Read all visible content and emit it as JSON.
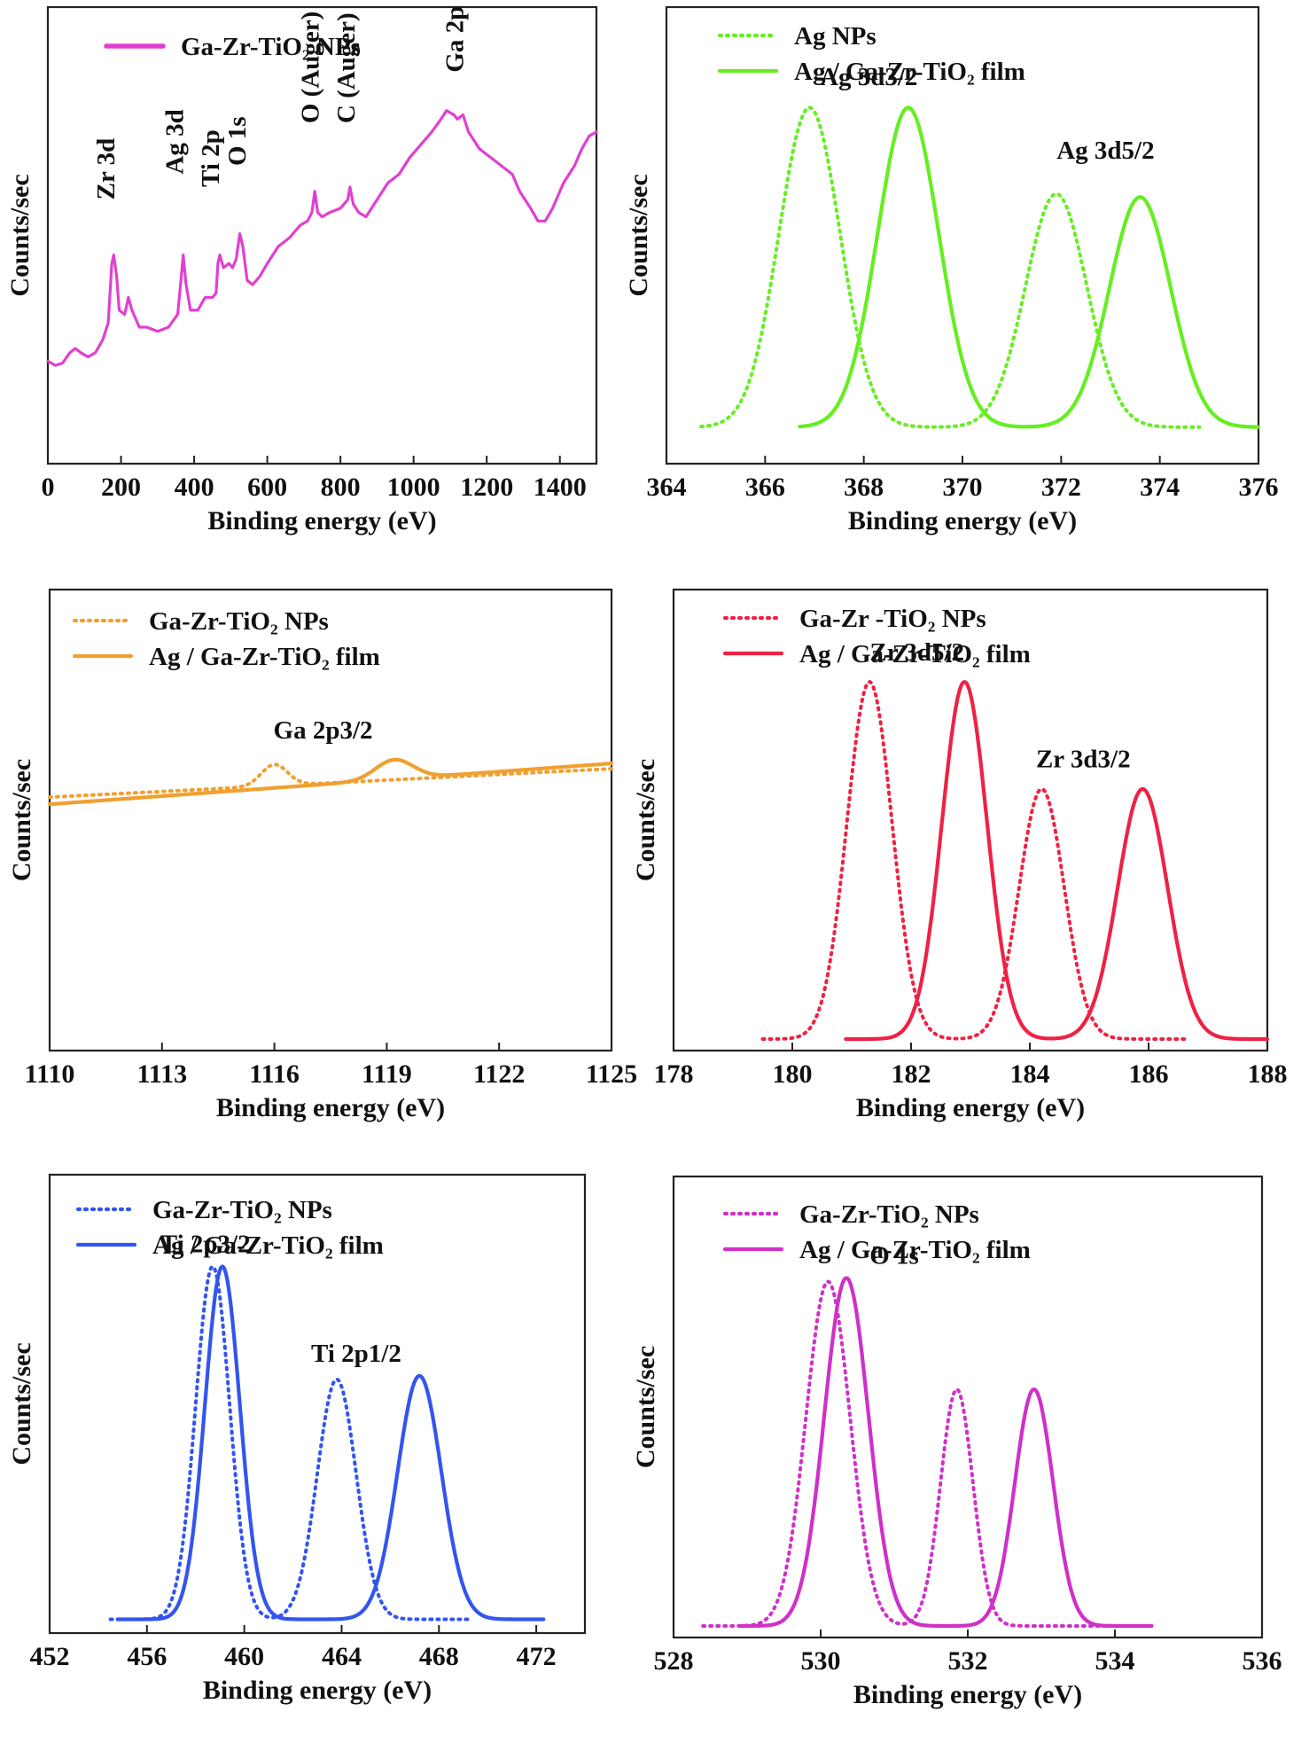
{
  "panels": [
    {
      "id": "survey",
      "style": "survey",
      "xlabel": "Binding energy (eV)",
      "ylabel": "Counts/sec",
      "xlim": [
        0,
        1500
      ],
      "ylim": [
        0,
        1
      ],
      "ticks": [
        0,
        200,
        400,
        600,
        800,
        1000,
        1200,
        1400
      ],
      "color": "#e040d0",
      "legend": [
        {
          "label": "Ga-Zr-TiO₂ NPs",
          "dash": "solid"
        }
      ],
      "annotations": [
        {
          "text": "Zr 3d",
          "x": 182,
          "y": 0.6,
          "rotate": true
        },
        {
          "text": "Ag 3d",
          "x": 370,
          "y": 0.66,
          "rotate": true
        },
        {
          "text": "Ti 2p",
          "x": 468,
          "y": 0.63,
          "rotate": true
        },
        {
          "text": "O 1s",
          "x": 540,
          "y": 0.68,
          "rotate": true
        },
        {
          "text": "O (Auger)",
          "x": 740,
          "y": 0.78,
          "rotate": true
        },
        {
          "text": "C (Auger)",
          "x": 838,
          "y": 0.78,
          "rotate": true
        },
        {
          "text": "Ga 2p",
          "x": 1135,
          "y": 0.9,
          "rotate": true
        }
      ],
      "series": [
        {
          "name": "Ga-Zr-TiO₂ NPs",
          "dash": "solid",
          "points": [
            [
              0,
              0.22
            ],
            [
              20,
              0.21
            ],
            [
              40,
              0.215
            ],
            [
              60,
              0.24
            ],
            [
              75,
              0.25
            ],
            [
              90,
              0.24
            ],
            [
              110,
              0.23
            ],
            [
              130,
              0.24
            ],
            [
              150,
              0.27
            ],
            [
              165,
              0.31
            ],
            [
              175,
              0.45
            ],
            [
              180,
              0.47
            ],
            [
              188,
              0.42
            ],
            [
              195,
              0.34
            ],
            [
              210,
              0.33
            ],
            [
              220,
              0.37
            ],
            [
              230,
              0.34
            ],
            [
              250,
              0.3
            ],
            [
              270,
              0.3
            ],
            [
              300,
              0.29
            ],
            [
              330,
              0.3
            ],
            [
              355,
              0.33
            ],
            [
              365,
              0.42
            ],
            [
              370,
              0.47
            ],
            [
              378,
              0.4
            ],
            [
              390,
              0.34
            ],
            [
              410,
              0.34
            ],
            [
              430,
              0.37
            ],
            [
              450,
              0.37
            ],
            [
              460,
              0.38
            ],
            [
              465,
              0.45
            ],
            [
              470,
              0.47
            ],
            [
              480,
              0.44
            ],
            [
              495,
              0.45
            ],
            [
              505,
              0.44
            ],
            [
              515,
              0.46
            ],
            [
              525,
              0.52
            ],
            [
              533,
              0.49
            ],
            [
              545,
              0.41
            ],
            [
              560,
              0.4
            ],
            [
              580,
              0.42
            ],
            [
              600,
              0.45
            ],
            [
              630,
              0.49
            ],
            [
              660,
              0.51
            ],
            [
              690,
              0.54
            ],
            [
              710,
              0.55
            ],
            [
              722,
              0.57
            ],
            [
              730,
              0.62
            ],
            [
              738,
              0.57
            ],
            [
              750,
              0.56
            ],
            [
              770,
              0.57
            ],
            [
              800,
              0.58
            ],
            [
              820,
              0.6
            ],
            [
              826,
              0.63
            ],
            [
              835,
              0.59
            ],
            [
              850,
              0.57
            ],
            [
              870,
              0.56
            ],
            [
              900,
              0.6
            ],
            [
              930,
              0.64
            ],
            [
              960,
              0.66
            ],
            [
              990,
              0.7
            ],
            [
              1020,
              0.73
            ],
            [
              1050,
              0.76
            ],
            [
              1075,
              0.79
            ],
            [
              1090,
              0.81
            ],
            [
              1110,
              0.8
            ],
            [
              1120,
              0.79
            ],
            [
              1135,
              0.8
            ],
            [
              1150,
              0.76
            ],
            [
              1180,
              0.72
            ],
            [
              1210,
              0.7
            ],
            [
              1240,
              0.68
            ],
            [
              1270,
              0.66
            ],
            [
              1290,
              0.62
            ],
            [
              1320,
              0.58
            ],
            [
              1340,
              0.55
            ],
            [
              1360,
              0.55
            ],
            [
              1380,
              0.58
            ],
            [
              1410,
              0.64
            ],
            [
              1440,
              0.68
            ],
            [
              1460,
              0.72
            ],
            [
              1480,
              0.75
            ],
            [
              1500,
              0.76
            ]
          ]
        }
      ]
    },
    {
      "id": "ag3d",
      "style": "gauss",
      "xlabel": "Binding energy (eV)",
      "ylabel": "Counts/sec",
      "xlim": [
        364,
        376
      ],
      "ylim": [
        0,
        1
      ],
      "ticks": [
        364,
        366,
        368,
        370,
        372,
        374,
        376
      ],
      "color": "#66ee22",
      "legend": [
        {
          "label": "Ag NPs",
          "dash": "dotted"
        },
        {
          "label": "Ag / Ga-Zr-TiO₂ film",
          "dash": "solid"
        }
      ],
      "annotations": [
        {
          "text": "Ag 3d3/2",
          "x": 368.1,
          "y": 1.07,
          "rotate": false
        },
        {
          "text": "Ag 3d5/2",
          "x": 372.9,
          "y": 0.84,
          "rotate": false
        }
      ],
      "series": [
        {
          "name": "Ag NPs",
          "dash": "dotted",
          "xrange": [
            364.7,
            374.8
          ],
          "peaks": [
            [
              366.9,
              1.0,
              0.62
            ],
            [
              371.9,
              0.73,
              0.62
            ]
          ]
        },
        {
          "name": "Ag / Ga-Zr-TiO₂ film",
          "dash": "solid",
          "xrange": [
            366.7,
            376
          ],
          "peaks": [
            [
              368.9,
              1.0,
              0.62
            ],
            [
              373.6,
              0.72,
              0.62
            ]
          ]
        }
      ]
    },
    {
      "id": "ga2p",
      "style": "ga",
      "xlabel": "Binding energy (eV)",
      "ylabel": "Counts/sec",
      "xlim": [
        1110,
        1125
      ],
      "ylim": [
        0,
        1
      ],
      "ticks": [
        1110,
        1113,
        1116,
        1119,
        1122,
        1125
      ],
      "color": "#f0a030",
      "legend": [
        {
          "label": "Ga-Zr-TiO₂ NPs",
          "dash": "dotted"
        },
        {
          "label": "Ag / Ga-Zr-TiO₂ film",
          "dash": "solid"
        }
      ],
      "annotations": [
        {
          "text": "Ga 2p3/2",
          "x": 1117.3,
          "y": 0.84,
          "rotate": false
        }
      ],
      "series": [
        {
          "name": "Ga-Zr-TiO₂ NPs",
          "dash": "dotted",
          "xrange": [
            1110,
            1125
          ],
          "baseline": [
            0.675,
            0.755
          ],
          "peaks": [
            [
              1116.0,
              0.06,
              0.35
            ]
          ]
        },
        {
          "name": "Ag / Ga-Zr-TiO₂ film",
          "dash": "solid",
          "xrange": [
            1110,
            1125
          ],
          "baseline": [
            0.655,
            0.77
          ],
          "peaks": [
            [
              1119.2,
              0.055,
              0.5
            ]
          ]
        }
      ]
    },
    {
      "id": "zr3d",
      "style": "gauss",
      "xlabel": "Binding energy (eV)",
      "ylabel": "Counts/sec",
      "xlim": [
        178,
        188
      ],
      "ylim": [
        0,
        1
      ],
      "ticks": [
        178,
        180,
        182,
        184,
        186,
        188
      ],
      "color": "#ee2244",
      "legend": [
        {
          "label": "Ga-Zr -TiO₂ NPs",
          "dash": "dotted"
        },
        {
          "label": "Ag / Ga-Zr-TiO₂ film",
          "dash": "solid"
        }
      ],
      "annotations": [
        {
          "text": "Zr 3d5/2",
          "x": 182.1,
          "y": 1.06,
          "rotate": false
        },
        {
          "text": "Zr 3d3/2",
          "x": 184.9,
          "y": 0.76,
          "rotate": false
        }
      ],
      "series": [
        {
          "name": "Ga-Zr -TiO₂ NPs",
          "dash": "dotted",
          "xrange": [
            179.5,
            186.6
          ],
          "peaks": [
            [
              181.3,
              1.0,
              0.38
            ],
            [
              184.2,
              0.7,
              0.38
            ]
          ]
        },
        {
          "name": "Ag / Ga-Zr-TiO₂ film",
          "dash": "solid",
          "xrange": [
            180.9,
            188
          ],
          "peaks": [
            [
              182.9,
              1.0,
              0.38
            ],
            [
              185.9,
              0.7,
              0.42
            ]
          ]
        }
      ]
    },
    {
      "id": "ti2p",
      "style": "gauss",
      "xlabel": "Binding energy (eV)",
      "ylabel": "Counts/sec",
      "xlim": [
        452,
        474
      ],
      "ylim": [
        0,
        1
      ],
      "ticks": [
        452,
        456,
        460,
        464,
        468,
        472
      ],
      "color": "#3355ee",
      "legend": [
        {
          "label": "Ga-Zr-TiO₂ NPs",
          "dash": "dotted"
        },
        {
          "label": "Ag / Ga-Zr-TiO₂ film",
          "dash": "solid"
        }
      ],
      "annotations": [
        {
          "text": "Ti 2p3/2",
          "x": 458.4,
          "y": 1.04,
          "rotate": false
        },
        {
          "text": "Ti 2p1/2",
          "x": 464.6,
          "y": 0.73,
          "rotate": false
        }
      ],
      "series": [
        {
          "name": "Ga-Zr-TiO₂ NPs",
          "dash": "dotted",
          "xrange": [
            454.5,
            469.2
          ],
          "peaks": [
            [
              458.7,
              1.0,
              0.7
            ],
            [
              463.8,
              0.68,
              0.8
            ]
          ]
        },
        {
          "name": "Ag / Ga-Zr-TiO₂ film",
          "dash": "solid",
          "xrange": [
            454.8,
            472.3
          ],
          "peaks": [
            [
              459.1,
              1.0,
              0.72
            ],
            [
              467.2,
              0.69,
              0.9
            ]
          ]
        }
      ]
    },
    {
      "id": "o1s",
      "style": "gauss",
      "xlabel": "Binding energy (eV)",
      "ylabel": "Counts/sec",
      "xlim": [
        528,
        536
      ],
      "ylim": [
        0,
        1
      ],
      "ticks": [
        528,
        530,
        532,
        534,
        536
      ],
      "color": "#d030c8",
      "legend": [
        {
          "label": "Ga-Zr-TiO₂ NPs",
          "dash": "dotted"
        },
        {
          "label": "Ag / Ga-Zr-TiO₂ film",
          "dash": "solid"
        }
      ],
      "annotations": [
        {
          "text": "O 1s",
          "x": 531.0,
          "y": 1.04,
          "rotate": false
        }
      ],
      "series": [
        {
          "name": "Ga-Zr-TiO₂ NPs",
          "dash": "dotted",
          "xrange": [
            528.4,
            534.5
          ],
          "peaks": [
            [
              530.1,
              0.99,
              0.3
            ],
            [
              531.85,
              0.68,
              0.22
            ]
          ]
        },
        {
          "name": "Ag / Ga-Zr-TiO₂ film",
          "dash": "solid",
          "xrange": [
            528.9,
            534.5
          ],
          "peaks": [
            [
              530.35,
              1.0,
              0.3
            ],
            [
              532.9,
              0.68,
              0.26
            ]
          ]
        }
      ]
    }
  ]
}
